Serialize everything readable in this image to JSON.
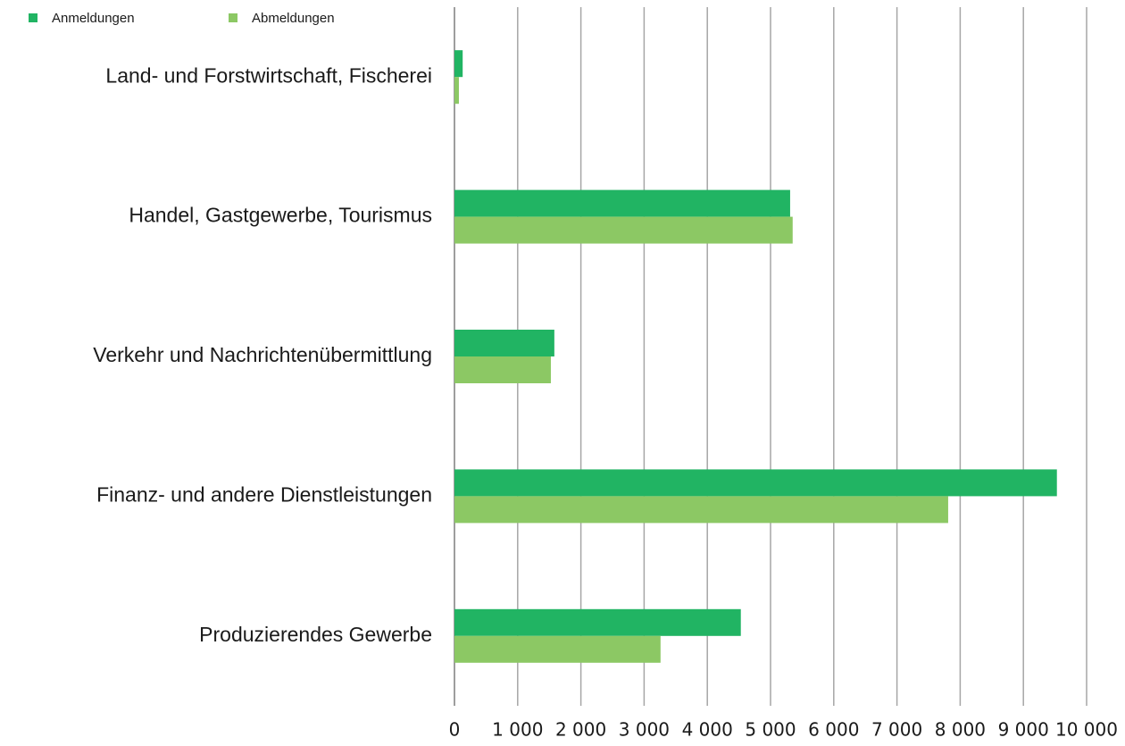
{
  "chart_data": {
    "type": "barh",
    "categories": [
      "Land- und Forstwirtschaft, Fischerei",
      "Handel, Gastgewerbe, Tourismus",
      "Verkehr und Nachrichtenübermittlung",
      "Finanz- und andere Dienstleistungen",
      "Produzierendes Gewerbe"
    ],
    "series": [
      {
        "name": "Anmeldungen",
        "color": "#21b463",
        "values": [
          130,
          5310,
          1580,
          9530,
          4530
        ]
      },
      {
        "name": "Abmeldungen",
        "color": "#8cc864",
        "values": [
          70,
          5350,
          1525,
          7810,
          3260
        ]
      }
    ],
    "xlim": [
      0,
      10000
    ],
    "xticks": [
      0,
      {
        "value": 1000,
        "label": "1 000"
      },
      {
        "value": 2000,
        "label": "2 000"
      },
      {
        "value": 3000,
        "label": "3 000"
      },
      {
        "value": 4000,
        "label": "4 000"
      },
      {
        "value": 5000,
        "label": "5 000"
      },
      {
        "value": 6000,
        "label": "6 000"
      },
      {
        "value": 7000,
        "label": "7 000"
      },
      {
        "value": 8000,
        "label": "8 000"
      },
      {
        "value": 9000,
        "label": "9 000"
      },
      {
        "value": 10000,
        "label": "10 000"
      }
    ],
    "grid": true,
    "legend": "top-left"
  }
}
